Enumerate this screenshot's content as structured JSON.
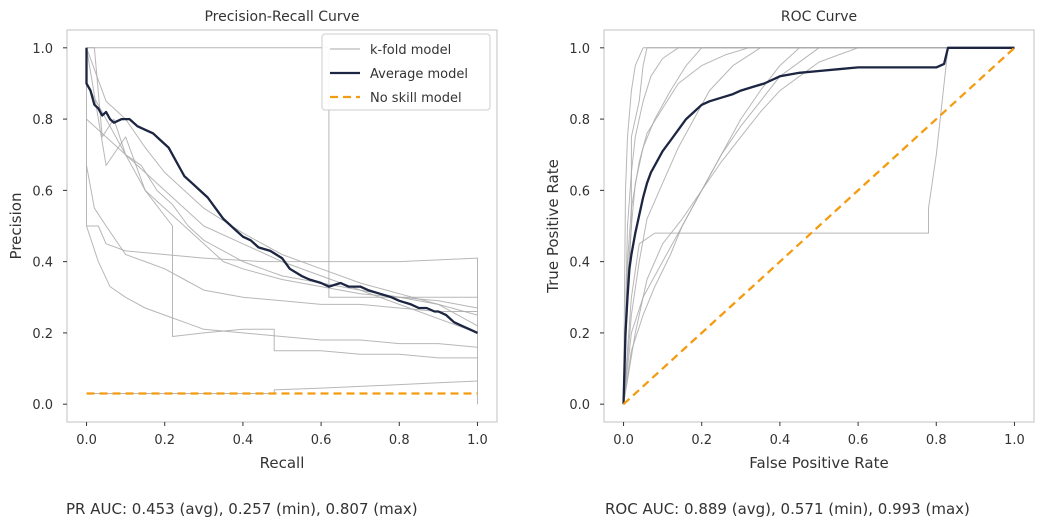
{
  "colors": {
    "kfold": "#aaaaaa",
    "average": "#1c2541",
    "no_skill": "#f39c12",
    "frame": "#cccccc",
    "text": "#333333"
  },
  "chart_data": [
    {
      "type": "line",
      "title": "Precision-Recall Curve",
      "xlabel": "Recall",
      "ylabel": "Precision",
      "xlim": [
        -0.05,
        1.05
      ],
      "ylim": [
        -0.05,
        1.05
      ],
      "xticks": [
        0.0,
        0.2,
        0.4,
        0.6,
        0.8,
        1.0
      ],
      "yticks": [
        0.0,
        0.2,
        0.4,
        0.6,
        0.8,
        1.0
      ],
      "xtick_labels": [
        "0.0",
        "0.2",
        "0.4",
        "0.6",
        "0.8",
        "1.0"
      ],
      "ytick_labels": [
        "0.0",
        "0.2",
        "0.4",
        "0.6",
        "0.8",
        "1.0"
      ],
      "grid": false,
      "legend": {
        "position": "top-right",
        "entries": [
          "k-fold model",
          "Average model",
          "No skill model"
        ]
      },
      "series": [
        {
          "name": "Average model",
          "style": "average",
          "x": [
            0,
            0,
            0.01,
            0.02,
            0.03,
            0.04,
            0.05,
            0.06,
            0.07,
            0.09,
            0.11,
            0.13,
            0.15,
            0.17,
            0.19,
            0.21,
            0.22,
            0.23,
            0.24,
            0.25,
            0.27,
            0.29,
            0.31,
            0.33,
            0.35,
            0.38,
            0.4,
            0.42,
            0.44,
            0.47,
            0.5,
            0.52,
            0.55,
            0.57,
            0.6,
            0.62,
            0.65,
            0.67,
            0.7,
            0.72,
            0.75,
            0.78,
            0.8,
            0.83,
            0.85,
            0.87,
            0.89,
            0.9,
            0.92,
            0.94,
            0.96,
            0.98,
            1.0
          ],
          "y": [
            1.0,
            0.9,
            0.88,
            0.84,
            0.83,
            0.81,
            0.82,
            0.8,
            0.79,
            0.8,
            0.8,
            0.78,
            0.77,
            0.76,
            0.74,
            0.72,
            0.7,
            0.68,
            0.66,
            0.64,
            0.62,
            0.6,
            0.58,
            0.55,
            0.52,
            0.49,
            0.47,
            0.46,
            0.44,
            0.43,
            0.41,
            0.38,
            0.36,
            0.35,
            0.34,
            0.33,
            0.34,
            0.33,
            0.33,
            0.32,
            0.31,
            0.3,
            0.29,
            0.28,
            0.27,
            0.27,
            0.26,
            0.26,
            0.25,
            0.23,
            0.22,
            0.21,
            0.2
          ]
        },
        {
          "name": "k-fold 1",
          "style": "kfold",
          "x": [
            0,
            0,
            0.03,
            0.05,
            0.1,
            0.2,
            0.3,
            0.45,
            0.48,
            0.6,
            0.8,
            1.0,
            1.0
          ],
          "y": [
            1.0,
            0.5,
            0.5,
            0.45,
            0.43,
            0.42,
            0.41,
            0.4,
            0.4,
            0.4,
            0.4,
            0.41,
            0.0
          ]
        },
        {
          "name": "k-fold 2",
          "style": "kfold",
          "x": [
            0,
            0.02,
            0.04,
            0.07,
            0.1,
            0.14,
            0.18,
            0.22,
            0.26,
            0.3,
            0.35,
            0.4,
            0.45,
            0.5,
            0.6,
            0.7,
            0.8,
            0.9,
            1.0
          ],
          "y": [
            1.0,
            1.0,
            0.75,
            0.8,
            0.7,
            0.67,
            0.6,
            0.56,
            0.5,
            0.46,
            0.43,
            0.4,
            0.38,
            0.36,
            0.34,
            0.32,
            0.3,
            0.29,
            0.27
          ]
        },
        {
          "name": "k-fold 3",
          "style": "kfold",
          "x": [
            0,
            0.05,
            0.1,
            0.15,
            0.2,
            0.25,
            0.3,
            0.35,
            0.4,
            0.5,
            0.6,
            0.7,
            0.8,
            0.9,
            1.0
          ],
          "y": [
            1.0,
            0.67,
            0.75,
            0.6,
            0.55,
            0.5,
            0.45,
            0.4,
            0.38,
            0.35,
            0.33,
            0.31,
            0.3,
            0.28,
            0.22
          ]
        },
        {
          "name": "k-fold 4",
          "style": "kfold",
          "x": [
            0,
            0.02,
            0.05,
            0.1,
            0.15,
            0.2,
            0.25,
            0.3,
            0.4,
            0.5,
            0.6,
            0.7,
            0.8,
            0.9,
            1.0
          ],
          "y": [
            0.67,
            0.55,
            0.5,
            0.42,
            0.4,
            0.38,
            0.35,
            0.32,
            0.3,
            0.29,
            0.28,
            0.28,
            0.27,
            0.26,
            0.26
          ]
        },
        {
          "name": "k-fold 5",
          "style": "kfold",
          "x": [
            0,
            0.03,
            0.06,
            0.1,
            0.15,
            0.2,
            0.25,
            0.3,
            0.4,
            0.5,
            0.6,
            0.7,
            0.8,
            0.9,
            1.0
          ],
          "y": [
            0.5,
            0.4,
            0.33,
            0.3,
            0.27,
            0.25,
            0.23,
            0.21,
            0.2,
            0.19,
            0.18,
            0.18,
            0.17,
            0.17,
            0.16
          ]
        },
        {
          "name": "k-fold 6",
          "style": "kfold",
          "x": [
            0,
            0.05,
            0.1,
            0.15,
            0.22,
            0.22,
            0.3,
            0.4,
            0.48,
            0.48,
            0.6,
            0.7,
            0.8,
            0.9,
            1.0
          ],
          "y": [
            0.9,
            0.8,
            0.7,
            0.6,
            0.5,
            0.19,
            0.2,
            0.21,
            0.21,
            0.15,
            0.15,
            0.14,
            0.14,
            0.13,
            0.13
          ]
        },
        {
          "name": "k-fold 7",
          "style": "kfold",
          "x": [
            0,
            0.48,
            0.48,
            0.6,
            0.7,
            0.8,
            0.9,
            1.0
          ],
          "y": [
            0.03,
            0.03,
            0.04,
            0.045,
            0.05,
            0.055,
            0.06,
            0.065
          ]
        },
        {
          "name": "k-fold 8",
          "style": "kfold",
          "x": [
            0,
            0.05,
            0.1,
            0.15,
            0.2,
            0.3,
            0.4,
            0.5,
            0.6,
            0.7,
            0.8,
            0.9,
            1.0
          ],
          "y": [
            1.0,
            0.85,
            0.8,
            0.72,
            0.65,
            0.55,
            0.48,
            0.42,
            0.38,
            0.34,
            0.31,
            0.28,
            0.25
          ]
        },
        {
          "name": "k-fold 9",
          "style": "kfold",
          "x": [
            0,
            0.1,
            0.2,
            0.3,
            0.4,
            0.5,
            0.6,
            0.7,
            0.8,
            0.9,
            1.0
          ],
          "y": [
            0.8,
            0.7,
            0.6,
            0.5,
            0.45,
            0.4,
            0.36,
            0.32,
            0.28,
            0.24,
            0.2
          ]
        },
        {
          "name": "k-fold 10",
          "style": "kfold",
          "x": [
            0,
            0.2,
            0.4,
            0.6,
            0.62,
            0.62,
            0.8,
            1.0
          ],
          "y": [
            1.0,
            1.0,
            1.0,
            1.0,
            1.0,
            0.3,
            0.3,
            0.3
          ]
        },
        {
          "name": "No skill model",
          "style": "no_skill",
          "x": [
            0.0,
            1.0
          ],
          "y": [
            0.03,
            0.03
          ]
        }
      ]
    },
    {
      "type": "line",
      "title": "ROC Curve",
      "xlabel": "False Positive Rate",
      "ylabel": "True Positive Rate",
      "xlim": [
        -0.05,
        1.05
      ],
      "ylim": [
        -0.05,
        1.05
      ],
      "xticks": [
        0.0,
        0.2,
        0.4,
        0.6,
        0.8,
        1.0
      ],
      "yticks": [
        0.0,
        0.2,
        0.4,
        0.6,
        0.8,
        1.0
      ],
      "xtick_labels": [
        "0.0",
        "0.2",
        "0.4",
        "0.6",
        "0.8",
        "1.0"
      ],
      "ytick_labels": [
        "0.0",
        "0.2",
        "0.4",
        "0.6",
        "0.8",
        "1.0"
      ],
      "grid": false,
      "legend": null,
      "series": [
        {
          "name": "Average model",
          "style": "average",
          "x": [
            0,
            0.005,
            0.01,
            0.015,
            0.02,
            0.03,
            0.04,
            0.05,
            0.06,
            0.07,
            0.08,
            0.1,
            0.12,
            0.14,
            0.16,
            0.18,
            0.2,
            0.22,
            0.25,
            0.28,
            0.3,
            0.33,
            0.36,
            0.4,
            0.45,
            0.5,
            0.55,
            0.6,
            0.65,
            0.7,
            0.75,
            0.8,
            0.82,
            0.83,
            0.85,
            0.9,
            1.0
          ],
          "y": [
            0,
            0.2,
            0.3,
            0.38,
            0.42,
            0.48,
            0.53,
            0.58,
            0.62,
            0.65,
            0.67,
            0.71,
            0.74,
            0.77,
            0.8,
            0.82,
            0.84,
            0.85,
            0.86,
            0.87,
            0.88,
            0.89,
            0.9,
            0.92,
            0.93,
            0.935,
            0.94,
            0.945,
            0.945,
            0.945,
            0.945,
            0.945,
            0.955,
            1.0,
            1.0,
            1.0,
            1.0
          ]
        },
        {
          "name": "k-fold 1",
          "style": "kfold",
          "x": [
            0,
            0.01,
            0.02,
            0.02,
            0.04,
            0.05,
            0.06,
            0.08,
            1.0
          ],
          "y": [
            0,
            0.3,
            0.5,
            0.75,
            0.85,
            0.95,
            1.0,
            1.0,
            1.0
          ]
        },
        {
          "name": "k-fold 2",
          "style": "kfold",
          "x": [
            0,
            0.01,
            0.02,
            0.03,
            0.05,
            0.08,
            0.12,
            0.16,
            0.2,
            0.3,
            1.0
          ],
          "y": [
            0,
            0.35,
            0.5,
            0.62,
            0.72,
            0.8,
            0.88,
            0.95,
            1.0,
            1.0,
            1.0
          ]
        },
        {
          "name": "k-fold 3",
          "style": "kfold",
          "x": [
            0,
            0.02,
            0.04,
            0.06,
            0.1,
            0.14,
            0.18,
            0.22,
            0.28,
            0.35,
            1.0
          ],
          "y": [
            0,
            0.25,
            0.4,
            0.52,
            0.62,
            0.72,
            0.8,
            0.88,
            0.95,
            1.0,
            1.0
          ]
        },
        {
          "name": "k-fold 4",
          "style": "kfold",
          "x": [
            0,
            0.02,
            0.05,
            0.1,
            0.15,
            0.2,
            0.25,
            0.3,
            0.35,
            0.4,
            0.45,
            1.0
          ],
          "y": [
            0,
            0.2,
            0.3,
            0.4,
            0.5,
            0.6,
            0.7,
            0.8,
            0.88,
            0.95,
            1.0,
            1.0
          ]
        },
        {
          "name": "k-fold 5",
          "style": "kfold",
          "x": [
            0,
            0.03,
            0.06,
            0.1,
            0.15,
            0.2,
            0.25,
            0.3,
            0.35,
            0.4,
            0.45,
            0.5,
            0.55,
            0.6,
            1.0
          ],
          "y": [
            0,
            0.2,
            0.35,
            0.45,
            0.52,
            0.6,
            0.68,
            0.75,
            0.82,
            0.88,
            0.92,
            0.96,
            0.98,
            1.0,
            1.0
          ]
        },
        {
          "name": "k-fold 6",
          "style": "kfold",
          "x": [
            0,
            0.01,
            0.02,
            0.04,
            0.06,
            0.1,
            0.14,
            0.2,
            0.26,
            0.32,
            1.0
          ],
          "y": [
            0,
            0.4,
            0.55,
            0.68,
            0.76,
            0.83,
            0.9,
            0.95,
            0.98,
            1.0,
            1.0
          ]
        },
        {
          "name": "k-fold 7",
          "style": "kfold",
          "x": [
            0,
            0.02,
            0.04,
            0.08,
            0.12,
            0.16,
            0.16,
            0.78,
            0.78,
            0.8,
            0.82,
            0.83,
            1.0
          ],
          "y": [
            0,
            0.3,
            0.45,
            0.48,
            0.48,
            0.48,
            0.48,
            0.48,
            0.55,
            0.7,
            0.9,
            1.0,
            1.0
          ]
        },
        {
          "name": "k-fold 8",
          "style": "kfold",
          "x": [
            0,
            0.01,
            0.02,
            0.03,
            0.05,
            0.07,
            0.1,
            0.14,
            1.0
          ],
          "y": [
            0,
            0.5,
            0.65,
            0.75,
            0.85,
            0.92,
            0.97,
            1.0,
            1.0
          ]
        },
        {
          "name": "k-fold 9",
          "style": "kfold",
          "x": [
            0,
            0.005,
            0.01,
            0.02,
            0.03,
            0.05,
            1.0
          ],
          "y": [
            0,
            0.6,
            0.75,
            0.88,
            0.95,
            1.0,
            1.0
          ]
        },
        {
          "name": "k-fold 10",
          "style": "kfold",
          "x": [
            0,
            0.02,
            0.05,
            0.08,
            0.12,
            0.15,
            0.2,
            0.25,
            0.3,
            0.35,
            0.4,
            0.5,
            1.0
          ],
          "y": [
            0,
            0.15,
            0.25,
            0.33,
            0.42,
            0.5,
            0.6,
            0.7,
            0.78,
            0.85,
            0.92,
            1.0,
            1.0
          ]
        },
        {
          "name": "No skill",
          "style": "no_skill",
          "x": [
            0.0,
            1.0
          ],
          "y": [
            0.0,
            1.0
          ]
        }
      ]
    }
  ],
  "captions": {
    "pr_auc": "PR AUC: 0.453 (avg), 0.257 (min), 0.807 (max)",
    "roc_auc": "ROC AUC: 0.889 (avg), 0.571 (min), 0.993 (max)"
  }
}
